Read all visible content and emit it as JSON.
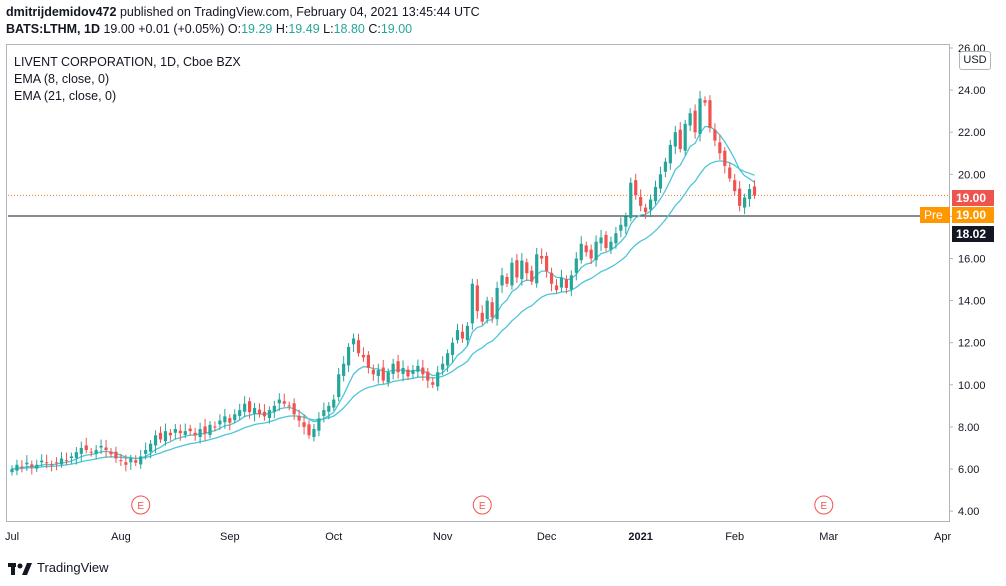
{
  "header": {
    "author": "dmitrijdemidov472",
    "published_text": "published on TradingView.com, February 04, 2021 13:45:44 UTC"
  },
  "quote": {
    "symbol": "BATS:LTHM, 1D",
    "last": "19.00",
    "change": "+0.01 (+0.05%)",
    "o_label": "O:",
    "o_value": "19.29",
    "h_label": "H:",
    "h_value": "19.49",
    "l_label": "L:",
    "l_value": "18.80",
    "c_label": "C:",
    "c_value": "19.00"
  },
  "legend": {
    "title": "LIVENT CORPORATION, 1D, Cboe BZX",
    "ema8": "EMA (8, close, 0)",
    "ema21": "EMA (21, close, 0)"
  },
  "axis": {
    "currency": "USD"
  },
  "price_tags": {
    "last": "19.00",
    "pre_label": "Pre",
    "pre_value": "19.00",
    "crosshair": "18.02"
  },
  "footer": {
    "brand": "TradingView"
  },
  "colors": {
    "up": "#26a69a",
    "down": "#ef5350",
    "ema": "#4dc6d6",
    "last_tag": "#ef5350",
    "pre_tag": "#ff9800",
    "crosshair_tag": "#131722"
  },
  "chart_data": {
    "type": "candlestick",
    "title": "LIVENT CORPORATION, 1D, Cboe BZX",
    "ylim": [
      3.5,
      26.5
    ],
    "y_ticks": [
      4,
      6,
      8,
      10,
      12,
      14,
      16,
      18,
      20,
      22,
      24,
      26
    ],
    "x_tick_labels": [
      "Jul",
      "Aug",
      "Sep",
      "Oct",
      "Nov",
      "Dec",
      "2021",
      "Feb",
      "Mar",
      "Apr"
    ],
    "x_tick_index": [
      0,
      22,
      44,
      65,
      87,
      108,
      127,
      146,
      165,
      188
    ],
    "earnings_marker_label": "E",
    "earnings_index": [
      26,
      95,
      164
    ],
    "crosshair_value": 18.02,
    "last_value": 19.0,
    "closes": [
      6.0,
      6.2,
      6.1,
      6.3,
      6.1,
      6.2,
      6.4,
      6.3,
      6.2,
      6.3,
      6.5,
      6.4,
      6.6,
      6.8,
      7.0,
      6.9,
      6.8,
      6.9,
      7.1,
      6.9,
      6.7,
      6.5,
      6.4,
      6.2,
      6.5,
      6.3,
      6.6,
      6.9,
      7.2,
      7.6,
      7.4,
      7.8,
      7.6,
      7.9,
      7.7,
      7.8,
      7.8,
      7.6,
      7.9,
      7.7,
      8.1,
      8.0,
      8.3,
      8.5,
      8.2,
      8.6,
      8.8,
      9.1,
      8.7,
      8.9,
      8.6,
      8.5,
      8.8,
      9.0,
      9.3,
      9.1,
      9.0,
      8.6,
      8.3,
      8.0,
      7.6,
      7.9,
      8.4,
      8.8,
      9.0,
      9.3,
      10.5,
      11.0,
      11.8,
      12.2,
      11.5,
      11.3,
      10.8,
      10.5,
      10.7,
      10.2,
      10.6,
      11.0,
      10.6,
      10.8,
      10.4,
      10.7,
      10.9,
      10.5,
      10.2,
      10.0,
      10.6,
      11.0,
      11.5,
      12.0,
      12.6,
      12.2,
      12.8,
      14.8,
      13.5,
      13.0,
      14.0,
      13.2,
      14.6,
      15.2,
      14.8,
      15.8,
      15.1,
      15.9,
      15.3,
      14.9,
      16.2,
      16.0,
      15.4,
      14.8,
      14.5,
      15.1,
      14.6,
      15.2,
      16.0,
      16.7,
      16.3,
      16.0,
      16.8,
      17.0,
      16.5,
      16.8,
      17.2,
      17.6,
      18.0,
      19.6,
      19.0,
      18.5,
      18.2,
      18.8,
      19.4,
      20.0,
      20.6,
      21.4,
      22.0,
      21.2,
      22.4,
      22.9,
      22.0,
      23.6,
      23.4,
      22.2,
      21.6,
      21.0,
      20.4,
      19.8,
      19.2,
      18.5,
      18.9,
      19.3,
      19.0
    ]
  }
}
